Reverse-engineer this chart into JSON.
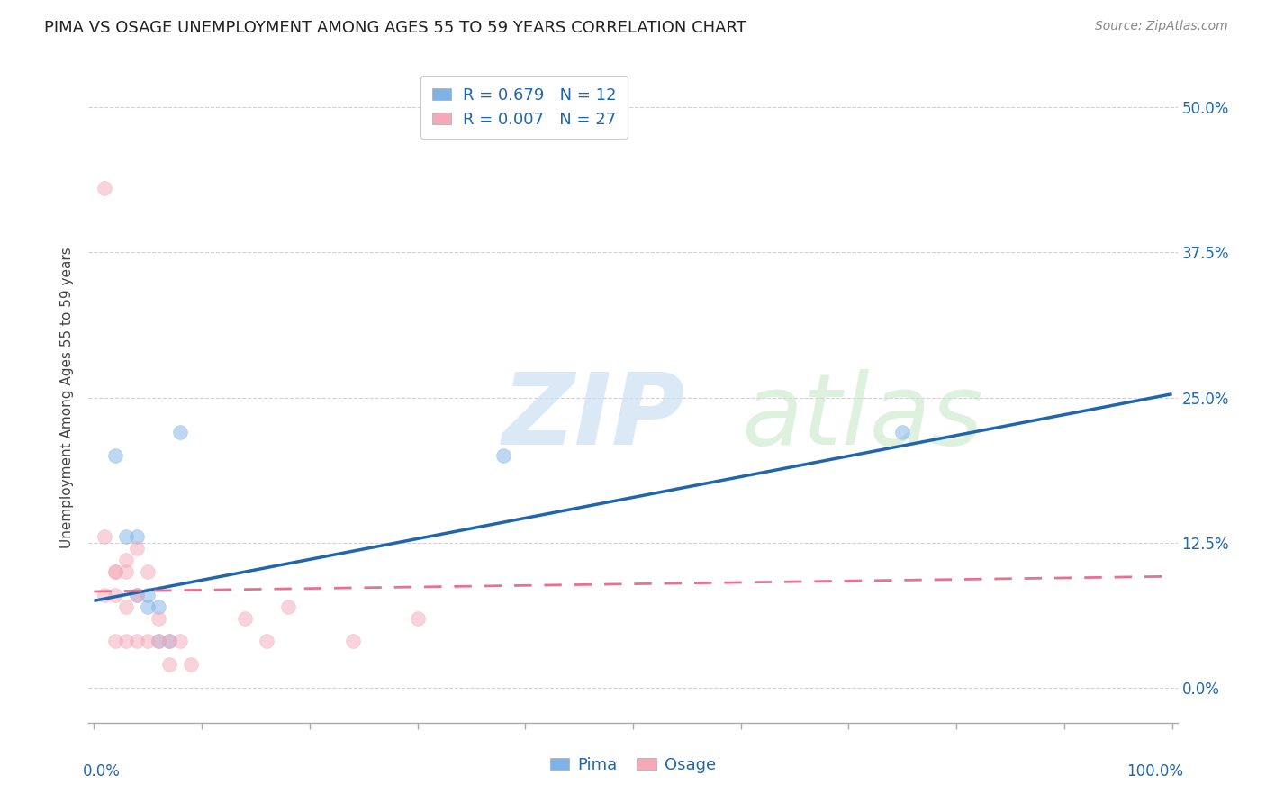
{
  "title": "PIMA VS OSAGE UNEMPLOYMENT AMONG AGES 55 TO 59 YEARS CORRELATION CHART",
  "source": "Source: ZipAtlas.com",
  "ylabel": "Unemployment Among Ages 55 to 59 years",
  "xlim": [
    -0.005,
    1.005
  ],
  "ylim": [
    -0.03,
    0.53
  ],
  "yticks": [
    0.0,
    0.125,
    0.25,
    0.375,
    0.5
  ],
  "ytick_labels": [
    "0.0%",
    "12.5%",
    "25.0%",
    "37.5%",
    "50.0%"
  ],
  "xtick_left_label": "0.0%",
  "xtick_right_label": "100.0%",
  "pima_R": "0.679",
  "pima_N": "12",
  "osage_R": "0.007",
  "osage_N": "27",
  "pima_color": "#7EB3E8",
  "osage_color": "#F4A8B8",
  "pima_line_color": "#2166AC",
  "osage_line_color": "#E87090",
  "background_color": "#ffffff",
  "grid_color": "#cccccc",
  "pima_x": [
    0.02,
    0.03,
    0.04,
    0.04,
    0.05,
    0.05,
    0.06,
    0.06,
    0.07,
    0.08,
    0.38,
    0.75
  ],
  "pima_y": [
    0.2,
    0.13,
    0.13,
    0.08,
    0.08,
    0.07,
    0.07,
    0.04,
    0.04,
    0.22,
    0.2,
    0.22
  ],
  "osage_x": [
    0.01,
    0.01,
    0.01,
    0.02,
    0.02,
    0.02,
    0.02,
    0.03,
    0.03,
    0.03,
    0.03,
    0.04,
    0.04,
    0.04,
    0.05,
    0.05,
    0.06,
    0.06,
    0.07,
    0.07,
    0.08,
    0.09,
    0.14,
    0.16,
    0.18,
    0.24,
    0.3
  ],
  "osage_y": [
    0.43,
    0.13,
    0.08,
    0.1,
    0.1,
    0.08,
    0.04,
    0.11,
    0.1,
    0.07,
    0.04,
    0.12,
    0.08,
    0.04,
    0.1,
    0.04,
    0.06,
    0.04,
    0.04,
    0.02,
    0.04,
    0.02,
    0.06,
    0.04,
    0.07,
    0.04,
    0.06
  ],
  "pima_trend_x": [
    0.0,
    1.0
  ],
  "pima_trend_y": [
    0.075,
    0.253
  ],
  "osage_trend_x": [
    0.0,
    1.0
  ],
  "osage_trend_y": [
    0.083,
    0.096
  ],
  "marker_size": 130,
  "marker_alpha": 0.5,
  "title_fontsize": 13,
  "axis_label_fontsize": 11,
  "tick_fontsize": 12,
  "legend_fontsize": 13,
  "label_color": "#2166AC"
}
